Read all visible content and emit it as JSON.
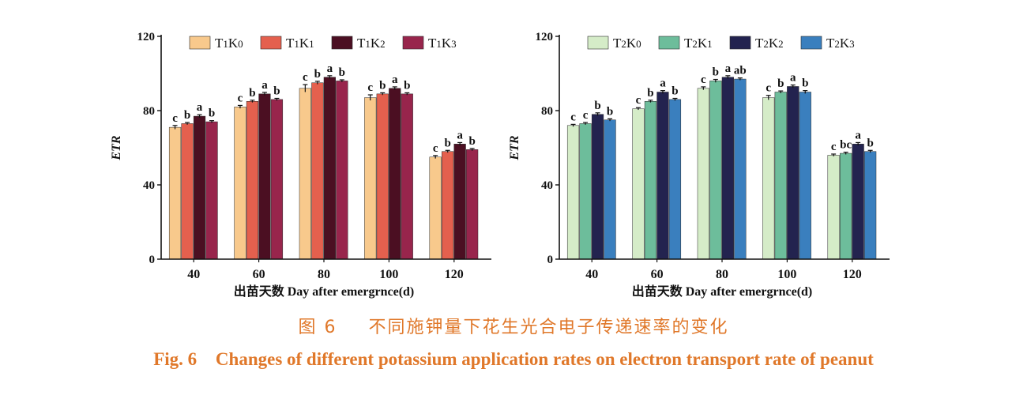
{
  "caption": {
    "cn_label": "图 6",
    "cn_text": "不同施钾量下花生光合电子传递速率的变化",
    "en_label": "Fig. 6",
    "en_text": "Changes of different potassium application rates on electron transport rate of peanut"
  },
  "chart_data": [
    {
      "type": "bar",
      "ylabel": "ETR",
      "xlabel": "出苗天数 Day after emergrnce(d)",
      "categories": [
        "40",
        "60",
        "80",
        "100",
        "120"
      ],
      "ylim": [
        0,
        120
      ],
      "yticks": [
        "0",
        "40",
        "80",
        "120"
      ],
      "legend_position": "top",
      "series": [
        {
          "name": "T1K0",
          "color": "#f8c98c",
          "values": [
            71,
            82,
            92,
            87,
            55
          ],
          "errors": [
            1,
            0.8,
            2,
            1.5,
            0.8
          ],
          "letters": [
            "c",
            "c",
            "c",
            "c",
            "c"
          ]
        },
        {
          "name": "T1K1",
          "color": "#e4604e",
          "values": [
            73,
            85,
            95,
            89,
            58
          ],
          "errors": [
            0.6,
            0.6,
            0.8,
            0.6,
            0.6
          ],
          "letters": [
            "b",
            "b",
            "b",
            "b",
            "b"
          ]
        },
        {
          "name": "T1K2",
          "color": "#4b0f22",
          "values": [
            77,
            89,
            98,
            92,
            62
          ],
          "errors": [
            0.8,
            0.8,
            0.8,
            0.8,
            0.8
          ],
          "letters": [
            "a",
            "a",
            "a",
            "a",
            "a"
          ]
        },
        {
          "name": "T1K3",
          "color": "#98254c",
          "values": [
            74,
            86,
            96,
            89,
            59
          ],
          "errors": [
            0.6,
            0.6,
            0.6,
            0.6,
            0.6
          ],
          "letters": [
            "b",
            "b",
            "b",
            "b",
            "b"
          ]
        }
      ]
    },
    {
      "type": "bar",
      "ylabel": "ETR",
      "xlabel": "出苗天数 Day after emergrnce(d)",
      "categories": [
        "40",
        "60",
        "80",
        "100",
        "120"
      ],
      "ylim": [
        0,
        120
      ],
      "yticks": [
        "0",
        "40",
        "80",
        "120"
      ],
      "legend_position": "top",
      "series": [
        {
          "name": "T2K0",
          "color": "#d5ecc8",
          "values": [
            72,
            81,
            92,
            87,
            56
          ],
          "errors": [
            0.6,
            0.6,
            0.8,
            1.2,
            0.6
          ],
          "letters": [
            "c",
            "c",
            "c",
            "c",
            "c"
          ]
        },
        {
          "name": "T2K1",
          "color": "#6dbd9b",
          "values": [
            73,
            85,
            96,
            90,
            57
          ],
          "errors": [
            0.6,
            0.6,
            0.8,
            0.6,
            0.6
          ],
          "letters": [
            "c",
            "b",
            "b",
            "b",
            "bc"
          ]
        },
        {
          "name": "T2K2",
          "color": "#23234f",
          "values": [
            78,
            90,
            98,
            93,
            62
          ],
          "errors": [
            0.8,
            0.8,
            0.8,
            0.8,
            0.8
          ],
          "letters": [
            "b",
            "a",
            "a",
            "a",
            "a"
          ]
        },
        {
          "name": "T2K3",
          "color": "#3a7fbe",
          "values": [
            75,
            86,
            97,
            90,
            58
          ],
          "errors": [
            0.6,
            0.6,
            0.6,
            0.8,
            0.6
          ],
          "letters": [
            "b",
            "b",
            "ab",
            "b",
            "b"
          ]
        }
      ]
    }
  ]
}
